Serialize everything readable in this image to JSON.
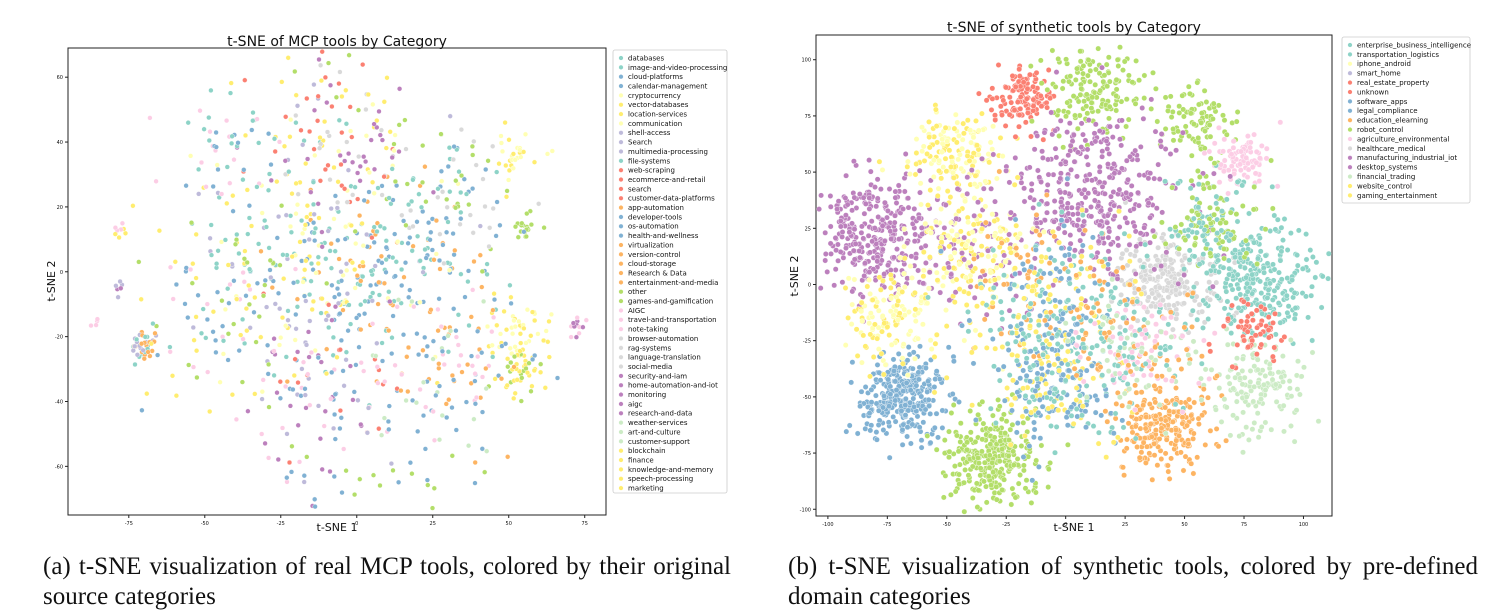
{
  "captions": {
    "a": "(a) t-SNE visualization of real MCP tools, colored by their original source categories",
    "b": "(b) t-SNE visualization of synthetic tools, colored by pre-defined domain categories"
  },
  "chart_data": [
    {
      "type": "scatter",
      "title": "t-SNE of MCP tools by Category",
      "xlabel": "t-SNE 1",
      "ylabel": "t-SNE 2",
      "xlim": [
        -95,
        82
      ],
      "ylim": [
        -75,
        69
      ],
      "xticks": [
        "-75",
        "-50",
        "-25",
        "0",
        "25",
        "50",
        "75"
      ],
      "xtick_values": [
        -75,
        -50,
        -25,
        0,
        25,
        50,
        75
      ],
      "yticks": [
        "-60",
        "-40",
        "-20",
        "0",
        "20",
        "40",
        "60"
      ],
      "ytick_values": [
        -60,
        -40,
        -20,
        0,
        20,
        40,
        60
      ],
      "grid": false,
      "legend_position": "outside-right",
      "categories": [
        {
          "name": "databases",
          "color": "#8dd3c7"
        },
        {
          "name": "image-and-video-processing",
          "color": "#8dd3c7"
        },
        {
          "name": "cloud-platforms",
          "color": "#80b1d3"
        },
        {
          "name": "calendar-management",
          "color": "#80b1d3"
        },
        {
          "name": "cryptocurrency",
          "color": "#ffffb3"
        },
        {
          "name": "vector-databases",
          "color": "#ffed6f"
        },
        {
          "name": "location-services",
          "color": "#ffed6f"
        },
        {
          "name": "communication",
          "color": "#ffffb3"
        },
        {
          "name": "shell-access",
          "color": "#bebada"
        },
        {
          "name": "Search",
          "color": "#bebada"
        },
        {
          "name": "multimedia-processing",
          "color": "#bebada"
        },
        {
          "name": "file-systems",
          "color": "#8dd3c7"
        },
        {
          "name": "web-scraping",
          "color": "#fb8072"
        },
        {
          "name": "ecommerce-and-retail",
          "color": "#fb8072"
        },
        {
          "name": "search",
          "color": "#fb8072"
        },
        {
          "name": "customer-data-platforms",
          "color": "#fb8072"
        },
        {
          "name": "app-automation",
          "color": "#fdb462"
        },
        {
          "name": "developer-tools",
          "color": "#80b1d3"
        },
        {
          "name": "os-automation",
          "color": "#80b1d3"
        },
        {
          "name": "health-and-wellness",
          "color": "#80b1d3"
        },
        {
          "name": "virtualization",
          "color": "#fdb462"
        },
        {
          "name": "version-control",
          "color": "#fdb462"
        },
        {
          "name": "cloud-storage",
          "color": "#fdb462"
        },
        {
          "name": "Research & Data",
          "color": "#fdb462"
        },
        {
          "name": "entertainment-and-media",
          "color": "#fdb462"
        },
        {
          "name": "other",
          "color": "#b3de69"
        },
        {
          "name": "games-and-gamification",
          "color": "#b3de69"
        },
        {
          "name": "AIGC",
          "color": "#fccde5"
        },
        {
          "name": "travel-and-transportation",
          "color": "#fccde5"
        },
        {
          "name": "note-taking",
          "color": "#fccde5"
        },
        {
          "name": "browser-automation",
          "color": "#d9d9d9"
        },
        {
          "name": "rag-systems",
          "color": "#d9d9d9"
        },
        {
          "name": "language-translation",
          "color": "#d9d9d9"
        },
        {
          "name": "social-media",
          "color": "#d9d9d9"
        },
        {
          "name": "security-and-iam",
          "color": "#bc80bd"
        },
        {
          "name": "home-automation-and-iot",
          "color": "#bc80bd"
        },
        {
          "name": "monitoring",
          "color": "#bc80bd"
        },
        {
          "name": "aigc",
          "color": "#bc80bd"
        },
        {
          "name": "research-and-data",
          "color": "#bc80bd"
        },
        {
          "name": "weather-services",
          "color": "#ccebc5"
        },
        {
          "name": "art-and-culture",
          "color": "#ccebc5"
        },
        {
          "name": "customer-support",
          "color": "#ccebc5"
        },
        {
          "name": "blockchain",
          "color": "#ffed6f"
        },
        {
          "name": "finance",
          "color": "#ffed6f"
        },
        {
          "name": "knowledge-and-memory",
          "color": "#ffed6f"
        },
        {
          "name": "speech-processing",
          "color": "#ffed6f"
        },
        {
          "name": "marketing",
          "color": "#ffed6f"
        }
      ],
      "clusters": [
        {
          "x": -70,
          "y": -23,
          "spread": 2,
          "n": 40,
          "colors": [
            "#bebada",
            "#8dd3c7",
            "#fdb462"
          ]
        },
        {
          "x": -78,
          "y": -5,
          "spread": 1,
          "n": 6,
          "colors": [
            "#bc80bd",
            "#bebada"
          ]
        },
        {
          "x": -78,
          "y": 13,
          "spread": 2,
          "n": 8,
          "colors": [
            "#ffed6f",
            "#fccde5"
          ]
        },
        {
          "x": -86,
          "y": -16,
          "spread": 1,
          "n": 4,
          "colors": [
            "#fccde5"
          ]
        },
        {
          "x": 54,
          "y": -18,
          "spread": 5,
          "n": 50,
          "colors": [
            "#ffed6f",
            "#ffffb3"
          ]
        },
        {
          "x": 54,
          "y": -32,
          "spread": 4,
          "n": 40,
          "colors": [
            "#ffed6f",
            "#b3de69"
          ]
        },
        {
          "x": 52,
          "y": 36,
          "spread": 4,
          "n": 30,
          "colors": [
            "#ffed6f",
            "#ffffb3"
          ]
        },
        {
          "x": 56,
          "y": 14,
          "spread": 2,
          "n": 18,
          "colors": [
            "#b3de69"
          ]
        },
        {
          "x": 73,
          "y": -18,
          "spread": 2,
          "n": 12,
          "colors": [
            "#fccde5",
            "#bc80bd"
          ]
        },
        {
          "x": 10,
          "y": -2,
          "spread": 16,
          "n": 200,
          "colors": [
            "#fdb462",
            "#80b1d3",
            "#8dd3c7"
          ]
        },
        {
          "x": -15,
          "y": 5,
          "spread": 20,
          "n": 200,
          "colors": [
            "#80b1d3",
            "#8dd3c7",
            "#ffed6f",
            "#ffffb3",
            "#bebada"
          ]
        },
        {
          "x": -10,
          "y": -35,
          "spread": 14,
          "n": 110,
          "colors": [
            "#fb8072",
            "#fccde5",
            "#80b1d3",
            "#bebada",
            "#bc80bd"
          ]
        },
        {
          "x": -5,
          "y": 35,
          "spread": 14,
          "n": 110,
          "colors": [
            "#ffffb3",
            "#ffed6f",
            "#fb8072",
            "#d9d9d9",
            "#bc80bd"
          ]
        },
        {
          "x": 30,
          "y": -28,
          "spread": 14,
          "n": 100,
          "colors": [
            "#fdb462",
            "#fccde5",
            "#ccebc5",
            "#80b1d3"
          ]
        },
        {
          "x": 30,
          "y": 25,
          "spread": 12,
          "n": 90,
          "colors": [
            "#80b1d3",
            "#8dd3c7",
            "#b3de69",
            "#d9d9d9"
          ]
        },
        {
          "x": -45,
          "y": -10,
          "spread": 14,
          "n": 110,
          "colors": [
            "#80b1d3",
            "#b3de69",
            "#8dd3c7",
            "#ffed6f",
            "#fccde5"
          ]
        },
        {
          "x": -40,
          "y": 35,
          "spread": 10,
          "n": 50,
          "colors": [
            "#80b1d3",
            "#fccde5",
            "#8dd3c7"
          ]
        },
        {
          "x": -8,
          "y": -62,
          "spread": 10,
          "n": 30,
          "colors": [
            "#80b1d3",
            "#bc80bd",
            "#b3de69"
          ]
        },
        {
          "x": 22,
          "y": -60,
          "spread": 8,
          "n": 16,
          "colors": [
            "#b3de69",
            "#80b1d3"
          ]
        },
        {
          "x": -12,
          "y": 58,
          "spread": 10,
          "n": 30,
          "colors": [
            "#b3de69",
            "#ffed6f",
            "#fb8072",
            "#bebada"
          ]
        }
      ]
    },
    {
      "type": "scatter",
      "title": "t-SNE of synthetic tools by Category",
      "xlabel": "t-SNE 1",
      "ylabel": "t-SNE 2",
      "xlim": [
        -105,
        112
      ],
      "ylim": [
        -103,
        111
      ],
      "xticks": [
        "-100",
        "-75",
        "-50",
        "-25",
        "0",
        "25",
        "50",
        "75",
        "100"
      ],
      "xtick_values": [
        -100,
        -75,
        -50,
        -25,
        0,
        25,
        50,
        75,
        100
      ],
      "yticks": [
        "-100",
        "-75",
        "-50",
        "-25",
        "0",
        "25",
        "50",
        "75",
        "100"
      ],
      "ytick_values": [
        -100,
        -75,
        -50,
        -25,
        0,
        25,
        50,
        75,
        100
      ],
      "grid": false,
      "legend_position": "outside-right",
      "categories": [
        {
          "name": "enterprise_business_intelligence",
          "color": "#8dd3c7"
        },
        {
          "name": "transportation_logistics",
          "color": "#8dd3c7"
        },
        {
          "name": "iphone_android",
          "color": "#ffffb3"
        },
        {
          "name": "smart_home",
          "color": "#bebada"
        },
        {
          "name": "real_estate_property",
          "color": "#fb8072"
        },
        {
          "name": "unknown",
          "color": "#fb8072"
        },
        {
          "name": "software_apps",
          "color": "#80b1d3"
        },
        {
          "name": "legal_compliance",
          "color": "#80b1d3"
        },
        {
          "name": "education_elearning",
          "color": "#fdb462"
        },
        {
          "name": "robot_control",
          "color": "#b3de69"
        },
        {
          "name": "agriculture_environmental",
          "color": "#fccde5"
        },
        {
          "name": "healthcare_medical",
          "color": "#d9d9d9"
        },
        {
          "name": "manufacturing_industrial_iot",
          "color": "#bc80bd"
        },
        {
          "name": "desktop_systems",
          "color": "#bc80bd"
        },
        {
          "name": "financial_trading",
          "color": "#ccebc5"
        },
        {
          "name": "website_control",
          "color": "#ffed6f"
        },
        {
          "name": "gaming_entertainment",
          "color": "#ffed6f"
        }
      ],
      "clusters": [
        {
          "x": -68,
          "y": -50,
          "spread": 9,
          "n": 320,
          "colors": [
            "#80b1d3"
          ]
        },
        {
          "x": -30,
          "y": -77,
          "spread": 10,
          "n": 300,
          "colors": [
            "#b3de69"
          ]
        },
        {
          "x": 40,
          "y": -63,
          "spread": 10,
          "n": 230,
          "colors": [
            "#fdb462"
          ]
        },
        {
          "x": -80,
          "y": 22,
          "spread": 12,
          "n": 330,
          "colors": [
            "#bc80bd"
          ]
        },
        {
          "x": -48,
          "y": 58,
          "spread": 10,
          "n": 160,
          "colors": [
            "#ffffb3",
            "#ffed6f"
          ]
        },
        {
          "x": -18,
          "y": 82,
          "spread": 7,
          "n": 120,
          "colors": [
            "#fb8072"
          ]
        },
        {
          "x": 12,
          "y": 85,
          "spread": 10,
          "n": 160,
          "colors": [
            "#b3de69"
          ]
        },
        {
          "x": 55,
          "y": 72,
          "spread": 8,
          "n": 90,
          "colors": [
            "#b3de69"
          ]
        },
        {
          "x": 73,
          "y": 55,
          "spread": 6,
          "n": 90,
          "colors": [
            "#fccde5"
          ]
        },
        {
          "x": 42,
          "y": 2,
          "spread": 10,
          "n": 240,
          "colors": [
            "#d9d9d9"
          ]
        },
        {
          "x": 82,
          "y": 2,
          "spread": 12,
          "n": 260,
          "colors": [
            "#8dd3c7"
          ]
        },
        {
          "x": 82,
          "y": -45,
          "spread": 10,
          "n": 150,
          "colors": [
            "#ccebc5"
          ]
        },
        {
          "x": 78,
          "y": -20,
          "spread": 7,
          "n": 60,
          "colors": [
            "#fb8072"
          ]
        },
        {
          "x": 12,
          "y": 40,
          "spread": 18,
          "n": 380,
          "colors": [
            "#bc80bd"
          ]
        },
        {
          "x": -40,
          "y": 15,
          "spread": 14,
          "n": 260,
          "colors": [
            "#bc80bd",
            "#ffed6f",
            "#ffffb3"
          ]
        },
        {
          "x": -75,
          "y": -15,
          "spread": 10,
          "n": 130,
          "colors": [
            "#ffed6f",
            "#ffffb3"
          ]
        },
        {
          "x": -5,
          "y": -5,
          "spread": 18,
          "n": 330,
          "colors": [
            "#8dd3c7",
            "#80b1d3",
            "#fdb462",
            "#ffed6f"
          ]
        },
        {
          "x": -5,
          "y": -45,
          "spread": 14,
          "n": 260,
          "colors": [
            "#ffed6f",
            "#80b1d3",
            "#8dd3c7"
          ]
        },
        {
          "x": 30,
          "y": -28,
          "spread": 14,
          "n": 230,
          "colors": [
            "#ccebc5",
            "#fdb462",
            "#fccde5",
            "#8dd3c7"
          ]
        },
        {
          "x": 60,
          "y": 28,
          "spread": 10,
          "n": 160,
          "colors": [
            "#8dd3c7",
            "#b3de69"
          ]
        }
      ]
    }
  ]
}
